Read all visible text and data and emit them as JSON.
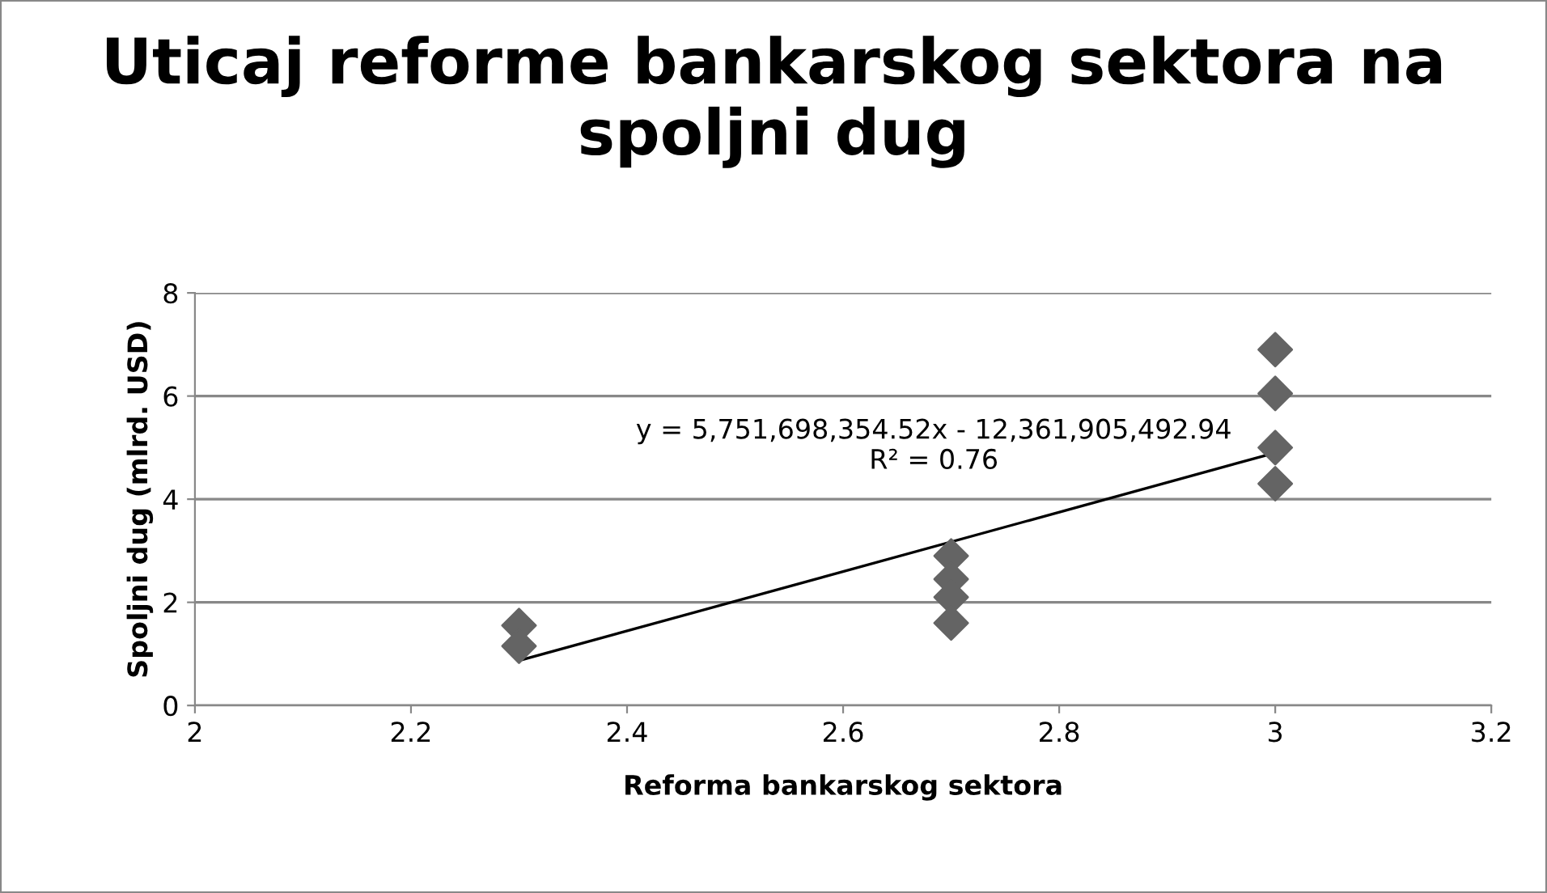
{
  "chart_data": {
    "type": "scatter",
    "title": "Uticaj reforme bankarskog sektora na spoljni dug",
    "xlabel": "Reforma bankarskog sektora",
    "ylabel": "Spoljni dug (mlrd. USD)",
    "series": [
      {
        "color": "#646464",
        "marker": "diamond",
        "x": [
          2.3,
          2.3,
          2.7,
          2.7,
          2.7,
          2.7,
          3.0,
          3.0,
          3.0,
          3.0
        ],
        "values": [
          1.55,
          1.15,
          2.9,
          2.45,
          2.1,
          1.6,
          6.9,
          6.05,
          5.0,
          4.3
        ]
      },
      {
        "type": "line",
        "color": "#000000",
        "marker": "none",
        "x": [
          2.3,
          3.0
        ],
        "values": [
          0.87,
          4.9
        ]
      }
    ],
    "annotations": [
      "y = 5,751,698,354.52x - 12,361,905,492.94\nR² = 0.76"
    ],
    "xlim": [
      2,
      3.2
    ],
    "xticks": [
      2,
      2.2,
      2.4,
      2.6,
      2.8,
      3,
      3.2
    ],
    "ylim": [
      0,
      8
    ],
    "yticks": [
      0,
      2,
      4,
      6,
      8
    ],
    "grid": "y",
    "legend": false
  }
}
